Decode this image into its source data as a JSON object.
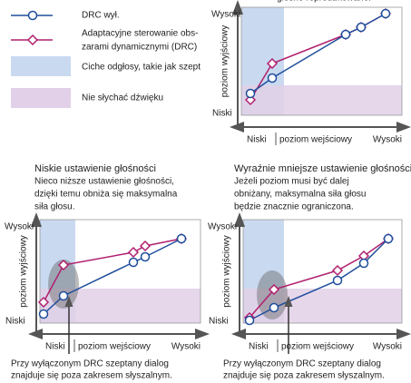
{
  "legend": {
    "items": [
      {
        "lines": [
          "DRC wył."
        ]
      },
      {
        "lines": [
          "Adaptacyjne sterowanie obs-",
          "zarami dynamicznymi (DRC)"
        ]
      },
      {
        "lines": [
          "Ciche odgłosy, takie jak szept"
        ]
      },
      {
        "lines": [
          "Nie słychać dźwięku"
        ]
      }
    ]
  },
  "panels": [
    {
      "title_lines": [
        "głośno reprodukowane."
      ],
      "y_high": "Wysoki",
      "y_low": "Niski",
      "y_axis": "poziom wyjściowy",
      "x_low": "Niski",
      "x_axis": "poziom wejściowy",
      "x_high": "Wysoki"
    },
    {
      "title": "Niskie ustawienie głośności",
      "description_lines": [
        "Nieco niższe ustawienie głośności,",
        "dzięki temu obniża się maksymalna",
        "siła głosu."
      ],
      "y_high": "Wysoki",
      "y_low": "Niski",
      "y_axis": "poziom wyjściowy",
      "x_low": "Niski",
      "x_axis": "poziom wejściowy",
      "x_high": "Wysoki",
      "caption_lines": [
        "Przy wyłączonym DRC szeptany dialog",
        "znajduje się poza zakresem słyszalnym."
      ]
    },
    {
      "title": "Wyraźnie mniejsze ustawienie głośności",
      "description_lines": [
        "Jeżeli poziom musi być dalej",
        "obniżany, maksymalna siła głosu",
        "będzie znacznie ograniczona."
      ],
      "y_high": "Wysoki",
      "y_low": "Niski",
      "y_axis": "poziom wyjściowy",
      "x_low": "Niski",
      "x_axis": "poziom wejściowy",
      "x_high": "Wysoki",
      "caption_lines": [
        "Przy wyłączonym DRC szeptany dialog",
        "znajduje się poza zakresem słyszalnym."
      ]
    }
  ]
}
